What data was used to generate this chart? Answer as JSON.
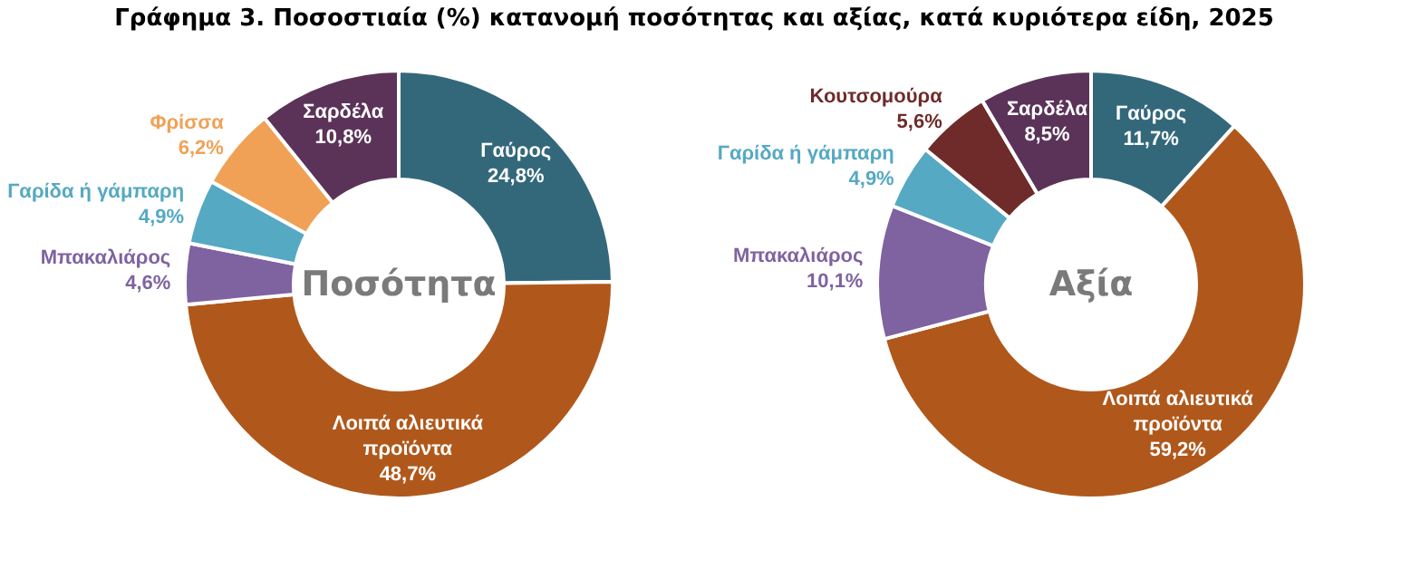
{
  "chart_data": [
    {
      "type": "donut",
      "title": "Γράφημα 3. Ποσοστιαία (%) κατανομή ποσότητας και αξίας, κατά κυριότερα είδη, 2025",
      "annotations": [
        "Ποσότητα"
      ],
      "categories": [
        "Γαύρος",
        "Λοιπά αλιευτικά προϊόντα",
        "Μπακαλιάρος",
        "Γαρίδα ή γάμπαρη",
        "Φρίσσα",
        "Σαρδέλα"
      ],
      "values": [
        24.8,
        48.7,
        4.6,
        4.9,
        6.2,
        10.8
      ],
      "value_labels": [
        "24,8%",
        "48,7%",
        "4,6%",
        "4,9%",
        "6,2%",
        "10,8%"
      ],
      "colors": [
        "#33687a",
        "#b0581b",
        "#7f62a0",
        "#55a9c2",
        "#f0a155",
        "#5b3358"
      ],
      "legend": false
    },
    {
      "type": "donut",
      "annotations": [
        "Αξία"
      ],
      "categories": [
        "Γαύρος",
        "Λοιπά αλιευτικά προϊόντα",
        "Μπακαλιάρος",
        "Γαρίδα ή γάμπαρη",
        "Κουτσομούρα",
        "Σαρδέλα"
      ],
      "values": [
        11.7,
        59.2,
        10.1,
        4.9,
        5.6,
        8.5
      ],
      "value_labels": [
        "11,7%",
        "59,2%",
        "10,1%",
        "4,9%",
        "5,6%",
        "8,5%"
      ],
      "colors": [
        "#33687a",
        "#b0581b",
        "#7f62a0",
        "#55a9c2",
        "#6e2b2a",
        "#5b3358"
      ],
      "legend": false
    }
  ]
}
